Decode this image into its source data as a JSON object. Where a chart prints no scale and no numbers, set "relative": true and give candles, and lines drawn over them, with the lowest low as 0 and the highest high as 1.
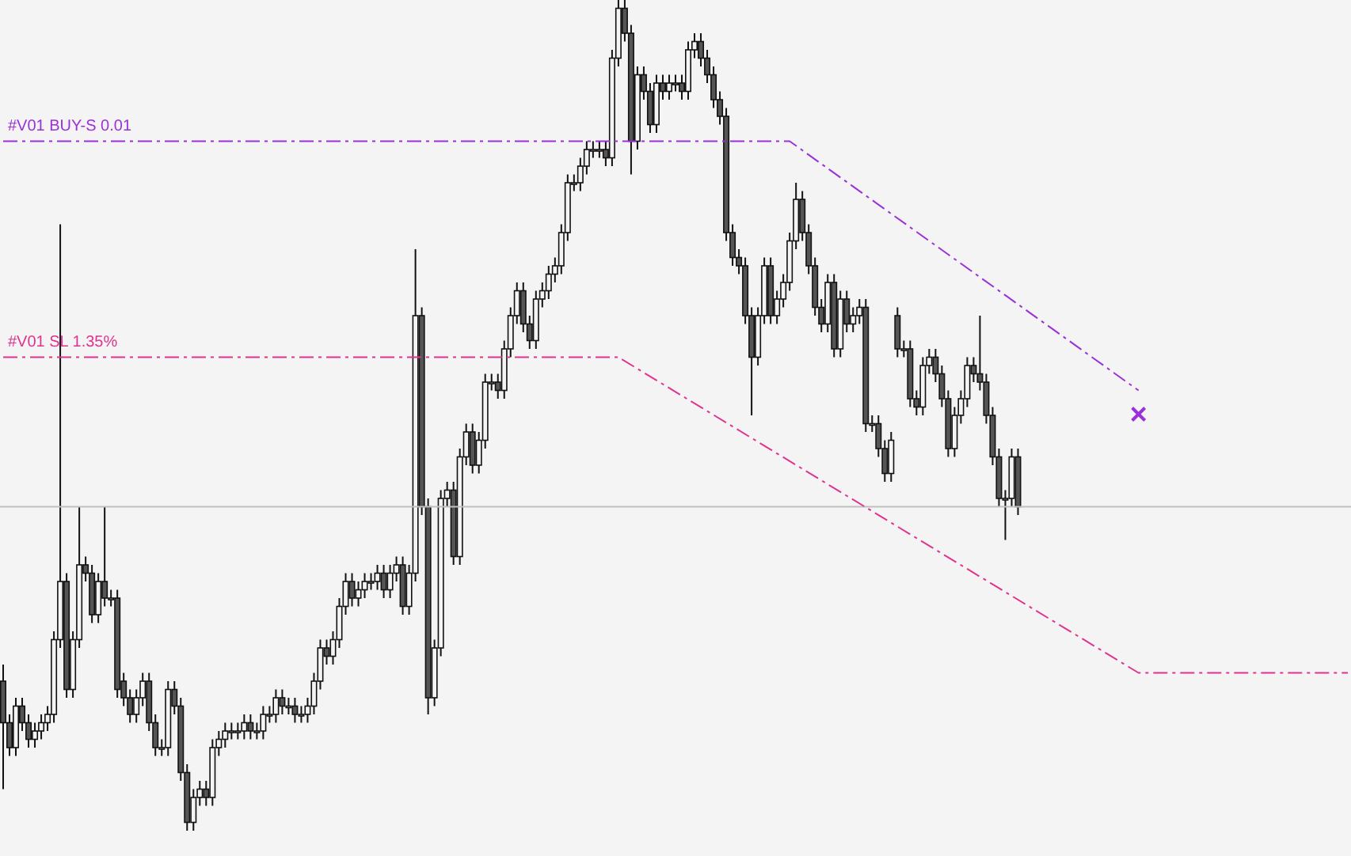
{
  "chart_data": {
    "type": "candlestick",
    "relative": true,
    "line_style": "dashed",
    "categories": [
      null,
      null,
      null,
      null,
      null,
      null,
      null,
      null,
      null,
      null,
      null,
      null,
      null,
      null,
      null,
      null,
      null,
      null,
      null,
      null,
      null,
      null,
      null,
      null,
      null,
      null,
      null,
      null,
      null,
      null,
      null,
      null,
      null,
      null,
      null,
      null,
      null,
      null,
      null,
      null,
      null,
      null,
      null,
      null,
      null,
      null,
      null,
      null,
      null,
      null,
      null,
      null,
      null,
      null,
      null,
      null,
      null,
      null,
      null,
      null,
      null,
      null,
      null,
      null,
      null,
      null,
      null,
      null,
      null,
      null,
      null,
      null,
      null,
      null,
      null,
      null,
      null,
      null,
      null,
      null,
      null,
      null,
      null,
      null,
      null,
      null,
      null,
      null,
      null,
      null,
      null,
      null,
      null,
      null,
      null,
      null,
      null,
      null,
      null,
      null,
      null,
      null,
      null,
      null,
      null,
      null,
      null,
      null,
      null,
      null,
      null,
      null,
      null,
      null,
      null,
      null,
      null,
      null,
      null,
      null,
      null,
      null,
      null,
      null,
      null,
      null,
      null,
      null,
      null,
      null,
      null,
      null,
      null,
      null,
      null,
      null,
      null,
      null,
      null,
      null,
      null,
      null,
      null,
      null,
      null,
      null,
      null,
      null,
      null,
      null,
      null,
      null,
      null,
      null,
      null,
      null,
      null,
      null,
      null,
      null,
      null,
      null,
      null,
      null,
      null,
      null,
      null,
      null,
      null,
      null,
      null,
      null,
      null,
      null,
      null,
      null,
      null,
      null,
      null,
      null,
      null,
      null,
      null,
      null,
      null,
      null,
      null,
      null,
      null,
      null,
      null,
      null,
      null,
      null,
      null,
      null,
      null,
      null,
      null,
      null,
      null,
      null,
      null,
      null,
      null,
      null,
      null,
      null,
      null,
      null,
      null,
      null,
      null
    ],
    "ohlc": [
      [
        0.18,
        0.2,
        0.05,
        0.13
      ],
      [
        0.13,
        0.14,
        0.09,
        0.1
      ],
      [
        0.1,
        0.16,
        0.09,
        0.15
      ],
      [
        0.15,
        0.16,
        0.12,
        0.13
      ],
      [
        0.13,
        0.14,
        0.1,
        0.11
      ],
      [
        0.11,
        0.13,
        0.1,
        0.12
      ],
      [
        0.12,
        0.14,
        0.11,
        0.13
      ],
      [
        0.13,
        0.15,
        0.12,
        0.14
      ],
      [
        0.14,
        0.24,
        0.13,
        0.23
      ],
      [
        0.23,
        0.73,
        0.22,
        0.3
      ],
      [
        0.3,
        0.31,
        0.16,
        0.17
      ],
      [
        0.17,
        0.24,
        0.16,
        0.23
      ],
      [
        0.23,
        0.39,
        0.22,
        0.32
      ],
      [
        0.32,
        0.33,
        0.3,
        0.31
      ],
      [
        0.31,
        0.32,
        0.25,
        0.26
      ],
      [
        0.26,
        0.31,
        0.25,
        0.3
      ],
      [
        0.3,
        0.39,
        0.27,
        0.28
      ],
      [
        0.28,
        0.29,
        0.27,
        0.28
      ],
      [
        0.28,
        0.29,
        0.16,
        0.17
      ],
      [
        0.18,
        0.19,
        0.15,
        0.16
      ],
      [
        0.16,
        0.17,
        0.13,
        0.14
      ],
      [
        0.14,
        0.17,
        0.13,
        0.16
      ],
      [
        0.16,
        0.19,
        0.15,
        0.18
      ],
      [
        0.18,
        0.19,
        0.12,
        0.13
      ],
      [
        0.13,
        0.14,
        0.09,
        0.1
      ],
      [
        0.1,
        0.11,
        0.09,
        0.1
      ],
      [
        0.1,
        0.18,
        0.09,
        0.17
      ],
      [
        0.17,
        0.18,
        0.14,
        0.15
      ],
      [
        0.15,
        0.16,
        0.06,
        0.07
      ],
      [
        0.07,
        0.08,
        0,
        0.01
      ],
      [
        0.01,
        0.05,
        0,
        0.04
      ],
      [
        0.04,
        0.06,
        0.03,
        0.05
      ],
      [
        0.05,
        0.06,
        0.03,
        0.04
      ],
      [
        0.04,
        0.11,
        0.03,
        0.1
      ],
      [
        0.1,
        0.12,
        0.09,
        0.11
      ],
      [
        0.11,
        0.13,
        0.1,
        0.12
      ],
      [
        0.12,
        0.13,
        0.11,
        0.12
      ],
      [
        0.12,
        0.13,
        0.11,
        0.12
      ],
      [
        0.12,
        0.14,
        0.11,
        0.13
      ],
      [
        0.13,
        0.14,
        0.11,
        0.12
      ],
      [
        0.12,
        0.13,
        0.11,
        0.12
      ],
      [
        0.12,
        0.15,
        0.11,
        0.14
      ],
      [
        0.14,
        0.15,
        0.13,
        0.14
      ],
      [
        0.14,
        0.17,
        0.13,
        0.16
      ],
      [
        0.16,
        0.17,
        0.14,
        0.15
      ],
      [
        0.15,
        0.16,
        0.14,
        0.15
      ],
      [
        0.15,
        0.16,
        0.13,
        0.14
      ],
      [
        0.14,
        0.15,
        0.13,
        0.14
      ],
      [
        0.14,
        0.16,
        0.13,
        0.15
      ],
      [
        0.15,
        0.19,
        0.14,
        0.18
      ],
      [
        0.18,
        0.23,
        0.17,
        0.22
      ],
      [
        0.22,
        0.23,
        0.2,
        0.21
      ],
      [
        0.21,
        0.24,
        0.2,
        0.23
      ],
      [
        0.23,
        0.28,
        0.22,
        0.27
      ],
      [
        0.27,
        0.31,
        0.26,
        0.3
      ],
      [
        0.3,
        0.31,
        0.27,
        0.28
      ],
      [
        0.28,
        0.3,
        0.27,
        0.29
      ],
      [
        0.29,
        0.31,
        0.28,
        0.3
      ],
      [
        0.3,
        0.31,
        0.29,
        0.3
      ],
      [
        0.3,
        0.32,
        0.29,
        0.31
      ],
      [
        0.31,
        0.32,
        0.28,
        0.29
      ],
      [
        0.29,
        0.32,
        0.28,
        0.31
      ],
      [
        0.31,
        0.33,
        0.3,
        0.32
      ],
      [
        0.32,
        0.33,
        0.26,
        0.27
      ],
      [
        0.27,
        0.32,
        0.26,
        0.31
      ],
      [
        0.31,
        0.7,
        0.3,
        0.62
      ],
      [
        0.62,
        0.63,
        0.38,
        0.39
      ],
      [
        0.39,
        0.4,
        0.14,
        0.16
      ],
      [
        0.16,
        0.23,
        0.15,
        0.22
      ],
      [
        0.22,
        0.41,
        0.21,
        0.4
      ],
      [
        0.4,
        0.42,
        0.39,
        0.41
      ],
      [
        0.41,
        0.42,
        0.32,
        0.33
      ],
      [
        0.33,
        0.46,
        0.32,
        0.45
      ],
      [
        0.45,
        0.49,
        0.44,
        0.48
      ],
      [
        0.48,
        0.49,
        0.43,
        0.44
      ],
      [
        0.44,
        0.48,
        0.43,
        0.47
      ],
      [
        0.47,
        0.55,
        0.46,
        0.54
      ],
      [
        0.54,
        0.55,
        0.53,
        0.54
      ],
      [
        0.54,
        0.55,
        0.52,
        0.53
      ],
      [
        0.53,
        0.59,
        0.52,
        0.58
      ],
      [
        0.58,
        0.63,
        0.57,
        0.62
      ],
      [
        0.62,
        0.66,
        0.61,
        0.65
      ],
      [
        0.65,
        0.66,
        0.6,
        0.61
      ],
      [
        0.61,
        0.62,
        0.58,
        0.59
      ],
      [
        0.59,
        0.65,
        0.58,
        0.64
      ],
      [
        0.64,
        0.66,
        0.63,
        0.65
      ],
      [
        0.65,
        0.68,
        0.64,
        0.67
      ],
      [
        0.67,
        0.69,
        0.66,
        0.68
      ],
      [
        0.68,
        0.73,
        0.67,
        0.72
      ],
      [
        0.72,
        0.79,
        0.71,
        0.78
      ],
      [
        0.78,
        0.79,
        0.77,
        0.78
      ],
      [
        0.78,
        0.81,
        0.77,
        0.8
      ],
      [
        0.8,
        0.83,
        0.79,
        0.82
      ],
      [
        0.82,
        0.83,
        0.81,
        0.82
      ],
      [
        0.82,
        0.83,
        0.81,
        0.82
      ],
      [
        0.82,
        0.83,
        0.8,
        0.81
      ],
      [
        0.81,
        0.94,
        0.8,
        0.93
      ],
      [
        0.93,
        1,
        0.92,
        0.99
      ],
      [
        0.99,
        1,
        0.95,
        0.96
      ],
      [
        0.96,
        0.97,
        0.79,
        0.83
      ],
      [
        0.83,
        0.92,
        0.82,
        0.91
      ],
      [
        0.91,
        0.92,
        0.88,
        0.89
      ],
      [
        0.89,
        0.9,
        0.84,
        0.85
      ],
      [
        0.85,
        0.91,
        0.84,
        0.9
      ],
      [
        0.9,
        0.91,
        0.88,
        0.89
      ],
      [
        0.89,
        0.91,
        0.88,
        0.9
      ],
      [
        0.9,
        0.91,
        0.89,
        0.9
      ],
      [
        0.9,
        0.91,
        0.88,
        0.89
      ],
      [
        0.89,
        0.95,
        0.88,
        0.94
      ],
      [
        0.94,
        0.96,
        0.93,
        0.95
      ],
      [
        0.95,
        0.96,
        0.92,
        0.93
      ],
      [
        0.93,
        0.94,
        0.9,
        0.91
      ],
      [
        0.91,
        0.92,
        0.87,
        0.88
      ],
      [
        0.88,
        0.89,
        0.85,
        0.86
      ],
      [
        0.86,
        0.87,
        0.71,
        0.72
      ],
      [
        0.72,
        0.73,
        0.68,
        0.69
      ],
      [
        0.69,
        0.7,
        0.67,
        0.68
      ],
      [
        0.68,
        0.69,
        0.61,
        0.62
      ],
      [
        0.62,
        0.63,
        0.5,
        0.57
      ],
      [
        0.57,
        0.63,
        0.56,
        0.62
      ],
      [
        0.62,
        0.69,
        0.61,
        0.68
      ],
      [
        0.68,
        0.69,
        0.61,
        0.62
      ],
      [
        0.62,
        0.65,
        0.61,
        0.64
      ],
      [
        0.64,
        0.67,
        0.63,
        0.66
      ],
      [
        0.66,
        0.72,
        0.65,
        0.71
      ],
      [
        0.71,
        0.78,
        0.7,
        0.76
      ],
      [
        0.76,
        0.77,
        0.71,
        0.72
      ],
      [
        0.72,
        0.73,
        0.67,
        0.68
      ],
      [
        0.68,
        0.69,
        0.62,
        0.63
      ],
      [
        0.63,
        0.64,
        0.6,
        0.61
      ],
      [
        0.61,
        0.67,
        0.6,
        0.66
      ],
      [
        0.66,
        0.67,
        0.57,
        0.58
      ],
      [
        0.58,
        0.65,
        0.57,
        0.64
      ],
      [
        0.64,
        0.65,
        0.6,
        0.61
      ],
      [
        0.61,
        0.63,
        0.6,
        0.62
      ],
      [
        0.62,
        0.64,
        0.61,
        0.63
      ],
      [
        0.63,
        0.64,
        0.48,
        0.49
      ],
      [
        0.49,
        0.5,
        0.48,
        0.49
      ],
      [
        0.49,
        0.5,
        0.45,
        0.46
      ],
      [
        0.46,
        0.47,
        0.42,
        0.43
      ],
      [
        0.43,
        0.48,
        0.42,
        0.47
      ],
      [
        0.62,
        0.63,
        0.57,
        0.58
      ],
      [
        0.58,
        0.59,
        0.57,
        0.58
      ],
      [
        0.58,
        0.59,
        0.51,
        0.52
      ],
      [
        0.52,
        0.53,
        0.5,
        0.51
      ],
      [
        0.51,
        0.57,
        0.5,
        0.56
      ],
      [
        0.56,
        0.58,
        0.55,
        0.57
      ],
      [
        0.57,
        0.58,
        0.54,
        0.55
      ],
      [
        0.55,
        0.56,
        0.51,
        0.52
      ],
      [
        0.52,
        0.53,
        0.45,
        0.46
      ],
      [
        0.46,
        0.51,
        0.45,
        0.5
      ],
      [
        0.5,
        0.53,
        0.49,
        0.52
      ],
      [
        0.52,
        0.57,
        0.51,
        0.56
      ],
      [
        0.56,
        0.57,
        0.54,
        0.55
      ],
      [
        0.55,
        0.62,
        0.53,
        0.54
      ],
      [
        0.54,
        0.55,
        0.49,
        0.5
      ],
      [
        0.5,
        0.51,
        0.44,
        0.45
      ],
      [
        0.45,
        0.46,
        0.39,
        0.4
      ],
      [
        0.4,
        0.41,
        0.35,
        0.4
      ],
      [
        0.4,
        0.46,
        0.39,
        0.45
      ],
      [
        0.45,
        0.46,
        0.38,
        0.39
      ],
      null,
      null,
      null,
      null,
      null,
      null,
      null,
      null,
      null,
      null,
      null,
      null,
      null,
      null,
      null,
      null,
      null,
      null,
      null,
      null,
      null,
      null,
      null,
      null,
      null,
      null,
      null,
      null,
      null,
      null,
      null,
      null,
      null,
      null,
      null,
      null,
      null,
      null,
      null,
      null,
      null,
      null,
      null,
      null,
      null,
      null,
      null,
      null,
      null,
      null,
      null,
      null
    ],
    "series": [
      {
        "type": "line",
        "name": "#V01 BUY-S 0.01",
        "color": "#9b30d9",
        "values": [
          0.83,
          null,
          null,
          null,
          null,
          null,
          null,
          null,
          null,
          null,
          null,
          null,
          null,
          null,
          null,
          null,
          null,
          null,
          null,
          null,
          null,
          null,
          null,
          null,
          null,
          null,
          null,
          null,
          null,
          null,
          null,
          null,
          null,
          null,
          null,
          null,
          null,
          null,
          null,
          null,
          null,
          null,
          null,
          null,
          null,
          null,
          null,
          null,
          null,
          null,
          null,
          null,
          null,
          null,
          null,
          null,
          null,
          null,
          null,
          null,
          null,
          null,
          null,
          null,
          null,
          null,
          null,
          null,
          null,
          null,
          null,
          null,
          null,
          null,
          null,
          null,
          null,
          null,
          null,
          null,
          null,
          null,
          null,
          null,
          null,
          null,
          null,
          null,
          null,
          null,
          null,
          null,
          null,
          null,
          null,
          null,
          null,
          null,
          null,
          null,
          null,
          null,
          null,
          null,
          null,
          null,
          null,
          null,
          null,
          null,
          null,
          null,
          null,
          null,
          null,
          null,
          null,
          null,
          null,
          null,
          null,
          null,
          null,
          null,
          0.83,
          null,
          null,
          null,
          null,
          null,
          null,
          null,
          null,
          null,
          null,
          null,
          null,
          null,
          null,
          null,
          null,
          null,
          null,
          null,
          null,
          null,
          null,
          null,
          null,
          null,
          null,
          null,
          null,
          null,
          null,
          null,
          null,
          null,
          null,
          null,
          null,
          null,
          null,
          null,
          null,
          null,
          null,
          null,
          null,
          null,
          null,
          null,
          null,
          null,
          null,
          null,
          null,
          null,
          null,
          0.53,
          null,
          null,
          null,
          null,
          null,
          null,
          null,
          null,
          null,
          null,
          null,
          null,
          null,
          null,
          null,
          null,
          null,
          null,
          null,
          null,
          null,
          null,
          null,
          null,
          null,
          null,
          null,
          null,
          null,
          null,
          null,
          null,
          null
        ]
      },
      {
        "type": "line",
        "name": "#V01 SL 1.35%",
        "color": "#e0338f",
        "values": [
          0.57,
          null,
          null,
          null,
          null,
          null,
          null,
          null,
          null,
          null,
          null,
          null,
          null,
          null,
          null,
          null,
          null,
          null,
          null,
          null,
          null,
          null,
          null,
          null,
          null,
          null,
          null,
          null,
          null,
          null,
          null,
          null,
          null,
          null,
          null,
          null,
          null,
          null,
          null,
          null,
          null,
          null,
          null,
          null,
          null,
          null,
          null,
          null,
          null,
          null,
          null,
          null,
          null,
          null,
          null,
          null,
          null,
          null,
          null,
          null,
          null,
          null,
          null,
          null,
          null,
          null,
          null,
          null,
          null,
          null,
          null,
          null,
          null,
          null,
          null,
          null,
          null,
          null,
          null,
          null,
          null,
          null,
          null,
          null,
          null,
          null,
          null,
          null,
          null,
          null,
          null,
          null,
          null,
          null,
          null,
          null,
          null,
          0.57,
          null,
          null,
          null,
          null,
          null,
          null,
          null,
          null,
          null,
          null,
          null,
          null,
          null,
          null,
          null,
          null,
          null,
          null,
          null,
          null,
          null,
          null,
          null,
          null,
          null,
          null,
          null,
          null,
          null,
          null,
          null,
          null,
          null,
          null,
          null,
          null,
          null,
          null,
          null,
          null,
          null,
          null,
          null,
          null,
          null,
          null,
          null,
          null,
          null,
          null,
          null,
          null,
          null,
          null,
          null,
          null,
          null,
          null,
          null,
          null,
          null,
          null,
          null,
          null,
          null,
          null,
          null,
          null,
          null,
          null,
          null,
          null,
          null,
          null,
          null,
          null,
          null,
          null,
          null,
          null,
          null,
          0.19,
          null,
          null,
          null,
          null,
          null,
          null,
          null,
          null,
          null,
          null,
          null,
          null,
          null,
          null,
          null,
          null,
          null,
          null,
          null,
          null,
          null,
          null,
          null,
          null,
          null,
          null,
          null,
          null,
          null,
          null,
          null,
          null,
          0.19
        ]
      }
    ],
    "ref_lines": [
      {
        "axis": "y",
        "value": 0.39,
        "color": "#c0c0c0"
      }
    ]
  }
}
